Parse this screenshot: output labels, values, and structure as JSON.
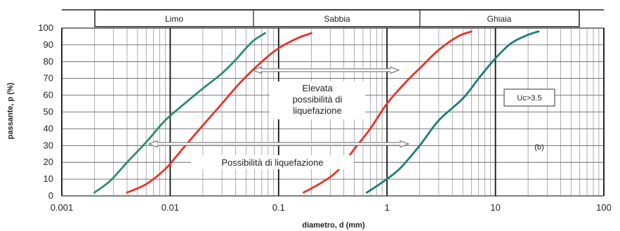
{
  "chart_data": {
    "type": "line",
    "xlabel": "diametro, d (mm)",
    "ylabel": "passante, p (%)",
    "x_scale": "log",
    "xlim": [
      0.001,
      100
    ],
    "ylim": [
      0,
      100
    ],
    "x_ticks": [
      "0.001",
      "0.01",
      "0.1",
      "1",
      "10",
      "100"
    ],
    "y_ticks": [
      "0",
      "10",
      "20",
      "30",
      "40",
      "50",
      "60",
      "70",
      "80",
      "90",
      "100"
    ],
    "grid": true,
    "bands": [
      {
        "label": "Limo",
        "from": 0.002,
        "to": 0.06
      },
      {
        "label": "Sabbia",
        "from": 0.06,
        "to": 2
      },
      {
        "label": "Ghiaia",
        "from": 2,
        "to": 60
      }
    ],
    "annotations": {
      "elevata": [
        "Elevata",
        "possibilità di",
        "liquefazione"
      ],
      "possibilita": "Possibilità di liquefazione",
      "uc": "Uc>3.5",
      "panel": "(b)"
    },
    "series": [
      {
        "color": "#2e8b6e",
        "points": [
          [
            0.002,
            2
          ],
          [
            0.0028,
            9
          ],
          [
            0.004,
            20
          ],
          [
            0.006,
            32
          ],
          [
            0.009,
            45
          ],
          [
            0.013,
            54
          ],
          [
            0.02,
            64
          ],
          [
            0.03,
            73
          ],
          [
            0.04,
            81
          ],
          [
            0.05,
            88
          ],
          [
            0.06,
            93
          ],
          [
            0.075,
            97
          ]
        ]
      },
      {
        "color": "#e8332a",
        "points": [
          [
            0.004,
            2
          ],
          [
            0.006,
            7
          ],
          [
            0.009,
            16
          ],
          [
            0.013,
            28
          ],
          [
            0.02,
            42
          ],
          [
            0.03,
            55
          ],
          [
            0.045,
            68
          ],
          [
            0.07,
            80
          ],
          [
            0.1,
            88
          ],
          [
            0.15,
            94
          ],
          [
            0.2,
            97
          ]
        ]
      },
      {
        "color": "#e8332a",
        "points": [
          [
            0.17,
            2
          ],
          [
            0.25,
            8
          ],
          [
            0.35,
            15
          ],
          [
            0.5,
            28
          ],
          [
            0.7,
            40
          ],
          [
            1,
            55
          ],
          [
            1.5,
            68
          ],
          [
            2,
            76
          ],
          [
            3,
            87
          ],
          [
            4.5,
            95
          ],
          [
            6,
            98
          ]
        ]
      },
      {
        "color": "#1f7c78",
        "points": [
          [
            0.65,
            2
          ],
          [
            0.9,
            8
          ],
          [
            1.3,
            16
          ],
          [
            2,
            30
          ],
          [
            3,
            45
          ],
          [
            5,
            58
          ],
          [
            7,
            70
          ],
          [
            10,
            82
          ],
          [
            14,
            91
          ],
          [
            20,
            96
          ],
          [
            25,
            98
          ]
        ]
      }
    ]
  }
}
